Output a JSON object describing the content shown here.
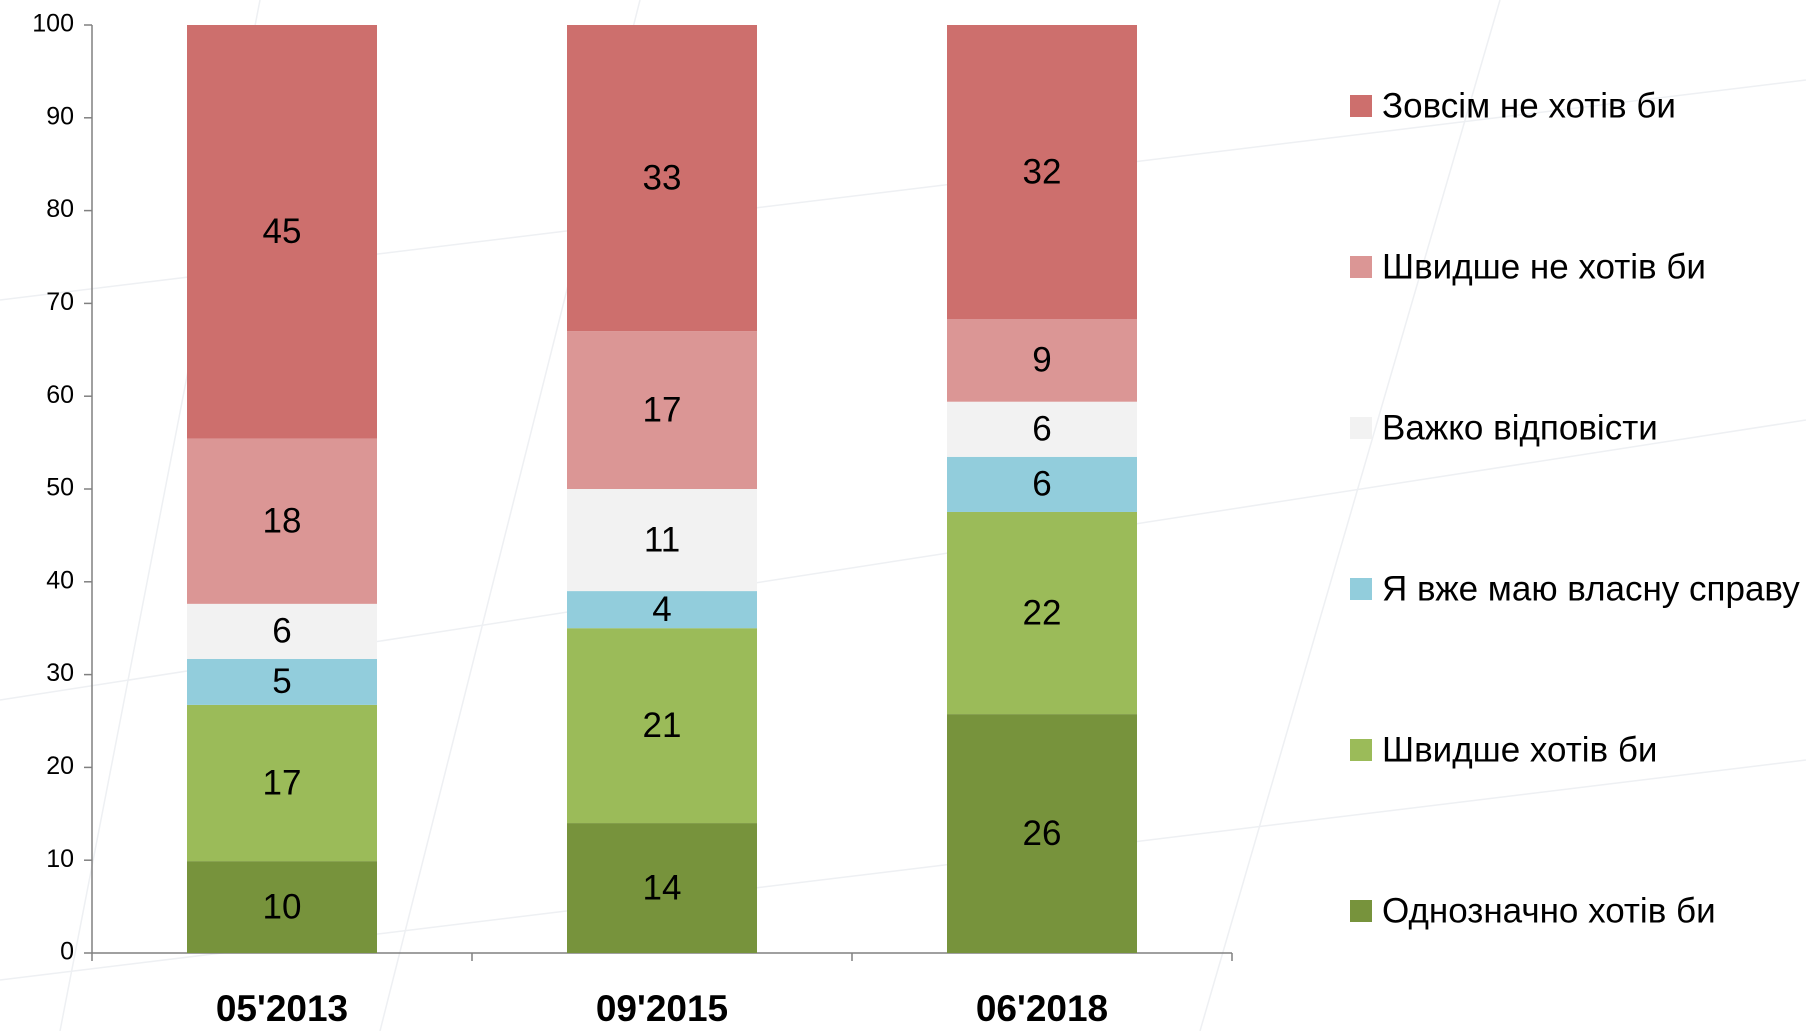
{
  "chart_data": {
    "type": "bar",
    "stacked": "percent",
    "categories": [
      "05'2013",
      "09'2015",
      "06'2018"
    ],
    "series": [
      {
        "name": "Однозначно хотів би",
        "color": "#77933c",
        "values": [
          10,
          14,
          26
        ]
      },
      {
        "name": "Швидше хотів би",
        "color": "#9bbb59",
        "values": [
          17,
          21,
          22
        ]
      },
      {
        "name": "Я вже маю власну справу",
        "color": "#92cddc",
        "values": [
          5,
          4,
          6
        ]
      },
      {
        "name": "Важко відповісти",
        "color": "#f2f2f2",
        "values": [
          6,
          11,
          6
        ]
      },
      {
        "name": "Швидше не хотів би",
        "color": "#db9695",
        "values": [
          18,
          17,
          9
        ]
      },
      {
        "name": "Зовсім не хотів би",
        "color": "#cd6f6d",
        "values": [
          45,
          33,
          32
        ]
      }
    ],
    "ylim": [
      0,
      100
    ],
    "yticks": [
      0,
      10,
      20,
      30,
      40,
      50,
      60,
      70,
      80,
      90,
      100
    ],
    "grid": false,
    "legend": "right"
  }
}
